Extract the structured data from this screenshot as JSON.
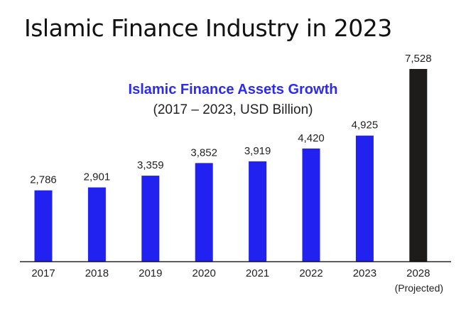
{
  "page_title": "Islamic Finance Industry in 2023",
  "colors": {
    "actual": "#2121f0",
    "projected": "#1e1b1b",
    "axis": "#000000"
  },
  "chart_data": {
    "type": "bar",
    "title": "Islamic Finance Assets Growth",
    "subtitle": "(2017 – 2023, USD Billion)",
    "categories": [
      "2017",
      "2018",
      "2019",
      "2020",
      "2021",
      "2022",
      "2023",
      "2028"
    ],
    "category_sublabels": [
      "",
      "",
      "",
      "",
      "",
      "",
      "",
      "(Projected)"
    ],
    "values": [
      2786,
      2901,
      3359,
      3852,
      3919,
      4420,
      4925,
      7528
    ],
    "value_labels": [
      "2,786",
      "2,901",
      "3,359",
      "3,852",
      "3,919",
      "4,420",
      "4,925",
      "7,528"
    ],
    "projected": [
      false,
      false,
      false,
      false,
      false,
      false,
      false,
      true
    ],
    "ylim": [
      0,
      8000
    ],
    "grid": false,
    "legend": "none"
  }
}
